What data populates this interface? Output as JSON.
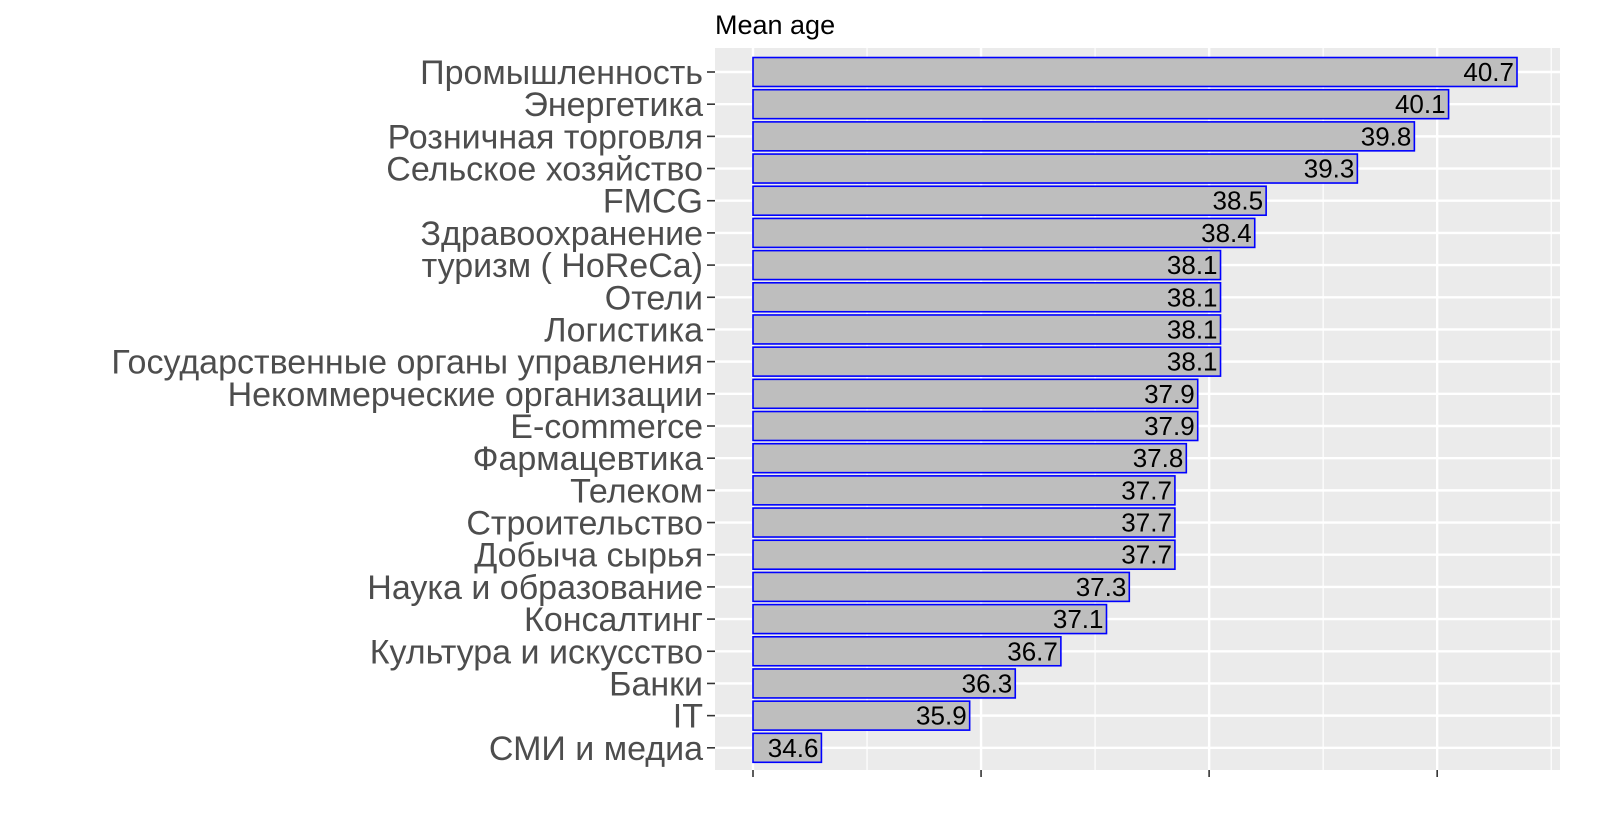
{
  "chart_data": {
    "type": "bar",
    "orientation": "horizontal",
    "title": "Mean age",
    "categories": [
      "Промышленность",
      "Энергетика",
      "Розничная торговля",
      "Сельское хозяйство",
      "FMCG",
      "Здравоохранение",
      "туризм ( HoReCa)",
      "Отели",
      "Логистика",
      "Государственные органы управления",
      "Некоммерческие организации",
      "E-commerce",
      "Фармацевтика",
      "Телеком",
      "Строительство",
      "Добыча сырья",
      "Наука и образование",
      "Консалтинг",
      "Культура и искусство",
      "Банки",
      "IT",
      "СМИ и медиа"
    ],
    "values": [
      40.7,
      40.1,
      39.8,
      39.3,
      38.5,
      38.4,
      38.1,
      38.1,
      38.1,
      38.1,
      37.9,
      37.9,
      37.8,
      37.7,
      37.7,
      37.7,
      37.3,
      37.1,
      36.7,
      36.3,
      35.9,
      34.6
    ],
    "value_labels": [
      "40.7",
      "40.1",
      "39.8",
      "39.3",
      "38.5",
      "38.4",
      "38.1",
      "38.1",
      "38.1",
      "38.1",
      "37.9",
      "37.9",
      "37.8",
      "37.7",
      "37.7",
      "37.7",
      "37.3",
      "37.1",
      "36.7",
      "36.3",
      "35.9",
      "34.6"
    ],
    "xlim": [
      34.0,
      41.0
    ],
    "x_major_ticks": [
      34.0,
      36.0,
      38.0,
      40.0
    ],
    "x_tick_labels_shown": false,
    "grid": true,
    "colors": {
      "panel_background": "#ebebeb",
      "gridline": "#ffffff",
      "bar_fill": "#bebebe",
      "bar_outline": "#0000ff",
      "category_text": "#4d4d4d",
      "value_text": "#000000"
    }
  }
}
